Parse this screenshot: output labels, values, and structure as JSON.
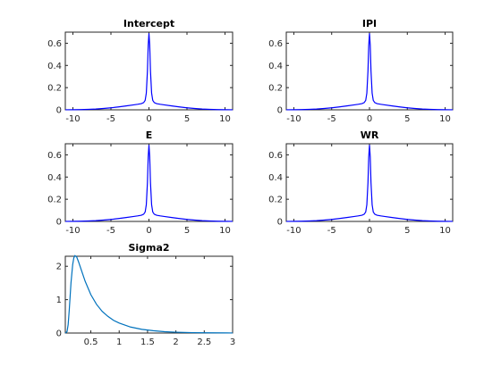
{
  "chart_data": [
    {
      "type": "line",
      "title": "Intercept",
      "xlim": [
        -11,
        11
      ],
      "ylim": [
        0,
        0.7
      ],
      "xticks": [
        -10,
        -5,
        0,
        5,
        10
      ],
      "yticks": [
        0,
        0.2,
        0.4,
        0.6
      ],
      "xticklabels": [
        "-10",
        "-5",
        "0",
        "5",
        "10"
      ],
      "yticklabels": [
        "0",
        "0.2",
        "0.4",
        "0.6"
      ],
      "grid": false,
      "series": [
        {
          "color": "#0000ff",
          "x": [
            -11,
            -10,
            -9,
            -8,
            -7,
            -6,
            -5,
            -4,
            -3,
            -2,
            -1.5,
            -1,
            -0.7,
            -0.5,
            -0.35,
            -0.2,
            -0.1,
            0,
            0.1,
            0.2,
            0.35,
            0.5,
            0.7,
            1,
            1.5,
            2,
            3,
            4,
            5,
            6,
            7,
            8,
            9,
            10,
            11
          ],
          "y": [
            0.0005,
            0.001,
            0.002,
            0.004,
            0.007,
            0.012,
            0.018,
            0.026,
            0.035,
            0.045,
            0.05,
            0.056,
            0.065,
            0.085,
            0.15,
            0.35,
            0.58,
            0.69,
            0.58,
            0.35,
            0.15,
            0.085,
            0.065,
            0.056,
            0.05,
            0.045,
            0.035,
            0.026,
            0.018,
            0.012,
            0.007,
            0.004,
            0.002,
            0.001,
            0.0005
          ]
        }
      ]
    },
    {
      "type": "line",
      "title": "IPI",
      "xlim": [
        -11,
        11
      ],
      "ylim": [
        0,
        0.7
      ],
      "xticks": [
        -10,
        -5,
        0,
        5,
        10
      ],
      "yticks": [
        0,
        0.2,
        0.4,
        0.6
      ],
      "xticklabels": [
        "-10",
        "-5",
        "0",
        "5",
        "10"
      ],
      "yticklabels": [
        "0",
        "0.2",
        "0.4",
        "0.6"
      ],
      "grid": false,
      "series": [
        {
          "color": "#0000ff",
          "x": [
            -11,
            -10,
            -9,
            -8,
            -7,
            -6,
            -5,
            -4,
            -3,
            -2,
            -1.5,
            -1,
            -0.7,
            -0.5,
            -0.35,
            -0.2,
            -0.1,
            0,
            0.1,
            0.2,
            0.35,
            0.5,
            0.7,
            1,
            1.5,
            2,
            3,
            4,
            5,
            6,
            7,
            8,
            9,
            10,
            11
          ],
          "y": [
            0.0005,
            0.001,
            0.002,
            0.004,
            0.007,
            0.012,
            0.018,
            0.026,
            0.035,
            0.045,
            0.05,
            0.056,
            0.065,
            0.085,
            0.15,
            0.35,
            0.58,
            0.69,
            0.58,
            0.35,
            0.15,
            0.085,
            0.065,
            0.056,
            0.05,
            0.045,
            0.035,
            0.026,
            0.018,
            0.012,
            0.007,
            0.004,
            0.002,
            0.001,
            0.0005
          ]
        }
      ]
    },
    {
      "type": "line",
      "title": "E",
      "xlim": [
        -11,
        11
      ],
      "ylim": [
        0,
        0.7
      ],
      "xticks": [
        -10,
        -5,
        0,
        5,
        10
      ],
      "yticks": [
        0,
        0.2,
        0.4,
        0.6
      ],
      "xticklabels": [
        "-10",
        "-5",
        "0",
        "5",
        "10"
      ],
      "yticklabels": [
        "0",
        "0.2",
        "0.4",
        "0.6"
      ],
      "grid": false,
      "series": [
        {
          "color": "#0000ff",
          "x": [
            -11,
            -10,
            -9,
            -8,
            -7,
            -6,
            -5,
            -4,
            -3,
            -2,
            -1.5,
            -1,
            -0.7,
            -0.5,
            -0.35,
            -0.2,
            -0.1,
            0,
            0.1,
            0.2,
            0.35,
            0.5,
            0.7,
            1,
            1.5,
            2,
            3,
            4,
            5,
            6,
            7,
            8,
            9,
            10,
            11
          ],
          "y": [
            0.0005,
            0.001,
            0.002,
            0.004,
            0.007,
            0.012,
            0.018,
            0.026,
            0.035,
            0.045,
            0.05,
            0.056,
            0.065,
            0.085,
            0.15,
            0.35,
            0.58,
            0.69,
            0.58,
            0.35,
            0.15,
            0.085,
            0.065,
            0.056,
            0.05,
            0.045,
            0.035,
            0.026,
            0.018,
            0.012,
            0.007,
            0.004,
            0.002,
            0.001,
            0.0005
          ]
        }
      ]
    },
    {
      "type": "line",
      "title": "WR",
      "xlim": [
        -11,
        11
      ],
      "ylim": [
        0,
        0.7
      ],
      "xticks": [
        -10,
        -5,
        0,
        5,
        10
      ],
      "yticks": [
        0,
        0.2,
        0.4,
        0.6
      ],
      "xticklabels": [
        "-10",
        "-5",
        "0",
        "5",
        "10"
      ],
      "yticklabels": [
        "0",
        "0.2",
        "0.4",
        "0.6"
      ],
      "grid": false,
      "series": [
        {
          "color": "#0000ff",
          "x": [
            -11,
            -10,
            -9,
            -8,
            -7,
            -6,
            -5,
            -4,
            -3,
            -2,
            -1.5,
            -1,
            -0.7,
            -0.5,
            -0.35,
            -0.2,
            -0.1,
            0,
            0.1,
            0.2,
            0.35,
            0.5,
            0.7,
            1,
            1.5,
            2,
            3,
            4,
            5,
            6,
            7,
            8,
            9,
            10,
            11
          ],
          "y": [
            0.0005,
            0.001,
            0.002,
            0.004,
            0.007,
            0.012,
            0.018,
            0.026,
            0.035,
            0.045,
            0.05,
            0.056,
            0.065,
            0.085,
            0.15,
            0.35,
            0.58,
            0.69,
            0.58,
            0.35,
            0.15,
            0.085,
            0.065,
            0.056,
            0.05,
            0.045,
            0.035,
            0.026,
            0.018,
            0.012,
            0.007,
            0.004,
            0.002,
            0.001,
            0.0005
          ]
        }
      ]
    },
    {
      "type": "line",
      "title": "Sigma2",
      "xlim": [
        0.05,
        3
      ],
      "ylim": [
        0,
        2.3
      ],
      "xticks": [
        0.5,
        1,
        1.5,
        2,
        2.5,
        3
      ],
      "yticks": [
        0,
        1,
        2
      ],
      "xticklabels": [
        "0.5",
        "1",
        "1.5",
        "2",
        "2.5",
        "3"
      ],
      "yticklabels": [
        "0",
        "1",
        "2"
      ],
      "grid": false,
      "series": [
        {
          "color": "#0072bd",
          "x": [
            0.05,
            0.08,
            0.1,
            0.12,
            0.15,
            0.18,
            0.2,
            0.22,
            0.25,
            0.28,
            0.3,
            0.35,
            0.4,
            0.5,
            0.6,
            0.7,
            0.8,
            0.9,
            1,
            1.2,
            1.4,
            1.6,
            1.8,
            2,
            2.3,
            2.6,
            3
          ],
          "y": [
            0,
            0.04,
            0.25,
            0.7,
            1.5,
            2.05,
            2.25,
            2.32,
            2.28,
            2.15,
            2.05,
            1.8,
            1.55,
            1.15,
            0.86,
            0.65,
            0.5,
            0.38,
            0.3,
            0.18,
            0.11,
            0.07,
            0.04,
            0.025,
            0.012,
            0.006,
            0.002
          ]
        }
      ]
    }
  ]
}
